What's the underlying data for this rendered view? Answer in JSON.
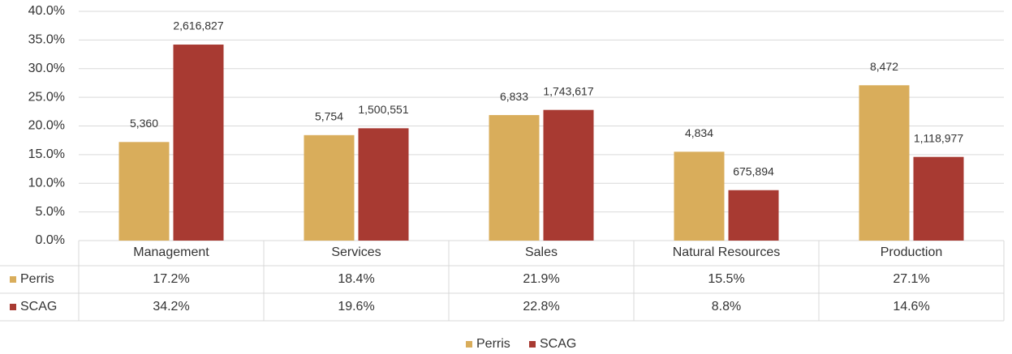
{
  "chart_data": {
    "type": "bar",
    "categories": [
      "Management",
      "Services",
      "Sales",
      "Natural Resources",
      "Production"
    ],
    "series": [
      {
        "name": "Perris",
        "color": "#d9ad5b",
        "values": [
          17.2,
          18.4,
          21.9,
          15.5,
          27.1
        ],
        "value_labels": [
          "17.2%",
          "18.4%",
          "21.9%",
          "15.5%",
          "27.1%"
        ],
        "count_labels": [
          "5,360",
          "5,754",
          "6,833",
          "4,834",
          "8,472"
        ]
      },
      {
        "name": "SCAG",
        "color": "#a83a32",
        "values": [
          34.2,
          19.6,
          22.8,
          8.8,
          14.6
        ],
        "value_labels": [
          "34.2%",
          "19.6%",
          "22.8%",
          "8.8%",
          "14.6%"
        ],
        "count_labels": [
          "2,616,827",
          "1,500,551",
          "1,743,617",
          "675,894",
          "1,118,977"
        ]
      }
    ],
    "ylim": [
      0,
      40
    ],
    "yticks": [
      {
        "value": 0,
        "label": "0.0%"
      },
      {
        "value": 5,
        "label": "5.0%"
      },
      {
        "value": 10,
        "label": "10.0%"
      },
      {
        "value": 15,
        "label": "15.0%"
      },
      {
        "value": 20,
        "label": "20.0%"
      },
      {
        "value": 25,
        "label": "25.0%"
      },
      {
        "value": 30,
        "label": "30.0%"
      },
      {
        "value": 35,
        "label": "35.0%"
      },
      {
        "value": 40,
        "label": "40.0%"
      }
    ],
    "grid": true,
    "legend": "bottom",
    "data_table": true
  }
}
